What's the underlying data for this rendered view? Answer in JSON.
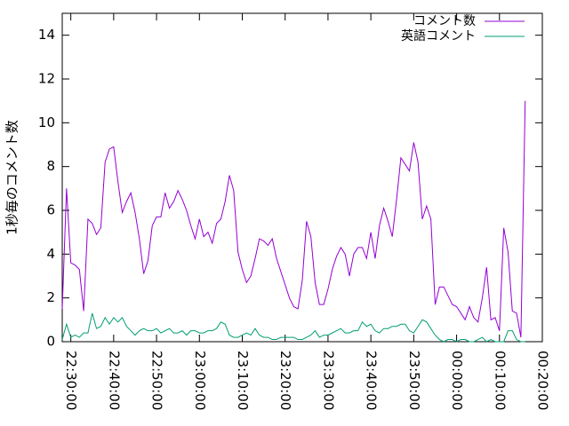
{
  "chart_data": {
    "type": "line",
    "y_label": "1秒毎のコメント数",
    "x": [
      "22:28:00",
      "22:29:00",
      "22:30:00",
      "22:31:00",
      "22:32:00",
      "22:33:00",
      "22:34:00",
      "22:35:00",
      "22:36:00",
      "22:37:00",
      "22:38:00",
      "22:39:00",
      "22:40:00",
      "22:41:00",
      "22:42:00",
      "22:43:00",
      "22:44:00",
      "22:45:00",
      "22:46:00",
      "22:47:00",
      "22:48:00",
      "22:49:00",
      "22:50:00",
      "22:51:00",
      "22:52:00",
      "22:53:00",
      "22:54:00",
      "22:55:00",
      "22:56:00",
      "22:57:00",
      "22:58:00",
      "22:59:00",
      "23:00:00",
      "23:01:00",
      "23:02:00",
      "23:03:00",
      "23:04:00",
      "23:05:00",
      "23:06:00",
      "23:07:00",
      "23:08:00",
      "23:09:00",
      "23:10:00",
      "23:11:00",
      "23:12:00",
      "23:13:00",
      "23:14:00",
      "23:15:00",
      "23:16:00",
      "23:17:00",
      "23:18:00",
      "23:19:00",
      "23:20:00",
      "23:21:00",
      "23:22:00",
      "23:23:00",
      "23:24:00",
      "23:25:00",
      "23:26:00",
      "23:27:00",
      "23:28:00",
      "23:29:00",
      "23:30:00",
      "23:31:00",
      "23:32:00",
      "23:33:00",
      "23:34:00",
      "23:35:00",
      "23:36:00",
      "23:37:00",
      "23:38:00",
      "23:39:00",
      "23:40:00",
      "23:41:00",
      "23:42:00",
      "23:43:00",
      "23:44:00",
      "23:45:00",
      "23:46:00",
      "23:47:00",
      "23:48:00",
      "23:49:00",
      "23:50:00",
      "23:51:00",
      "23:52:00",
      "23:53:00",
      "23:54:00",
      "23:55:00",
      "23:56:00",
      "23:57:00",
      "23:58:00",
      "23:59:00",
      "00:00:00",
      "00:01:00",
      "00:02:00",
      "00:03:00",
      "00:04:00",
      "00:05:00",
      "00:06:00",
      "00:07:00",
      "00:08:00",
      "00:09:00",
      "00:10:00",
      "00:11:00",
      "00:12:00",
      "00:13:00",
      "00:14:00",
      "00:15:00",
      "00:16:00"
    ],
    "series": [
      {
        "name": "コメント数",
        "color": "#9400d3",
        "values": [
          1.5,
          7.0,
          3.6,
          3.5,
          3.3,
          1.4,
          5.6,
          5.4,
          4.9,
          5.2,
          8.2,
          8.8,
          8.9,
          7.3,
          5.9,
          6.4,
          6.8,
          5.9,
          4.7,
          3.1,
          3.7,
          5.3,
          5.7,
          5.7,
          6.8,
          6.1,
          6.4,
          6.9,
          6.5,
          6.0,
          5.3,
          4.7,
          5.6,
          4.8,
          5.0,
          4.5,
          5.4,
          5.6,
          6.4,
          7.6,
          6.9,
          4.1,
          3.3,
          2.7,
          3.0,
          3.8,
          4.7,
          4.6,
          4.4,
          4.7,
          3.8,
          3.2,
          2.6,
          2.0,
          1.6,
          1.5,
          2.8,
          5.5,
          4.8,
          2.7,
          1.7,
          1.7,
          2.4,
          3.3,
          3.9,
          4.3,
          4.0,
          3.0,
          4.0,
          4.3,
          4.3,
          3.8,
          5.0,
          3.8,
          5.3,
          6.1,
          5.5,
          4.8,
          6.5,
          8.4,
          8.1,
          7.8,
          9.1,
          8.2,
          5.6,
          6.2,
          5.6,
          1.7,
          2.5,
          2.5,
          2.1,
          1.7,
          1.6,
          1.3,
          1.0,
          1.6,
          1.1,
          0.9,
          2.0,
          3.4,
          1.0,
          1.1,
          0.5,
          5.2,
          4.1,
          1.4,
          1.3,
          0.2,
          11.0
        ]
      },
      {
        "name": "英語コメント",
        "color": "#009e73",
        "values": [
          0.1,
          0.8,
          0.2,
          0.3,
          0.2,
          0.4,
          0.4,
          1.3,
          0.6,
          0.7,
          1.1,
          0.8,
          1.1,
          0.9,
          1.1,
          0.7,
          0.5,
          0.3,
          0.5,
          0.6,
          0.5,
          0.5,
          0.6,
          0.4,
          0.5,
          0.6,
          0.4,
          0.4,
          0.5,
          0.3,
          0.5,
          0.5,
          0.4,
          0.4,
          0.5,
          0.5,
          0.6,
          0.9,
          0.8,
          0.3,
          0.2,
          0.2,
          0.3,
          0.4,
          0.3,
          0.6,
          0.3,
          0.2,
          0.2,
          0.1,
          0.1,
          0.2,
          0.2,
          0.2,
          0.2,
          0.1,
          0.1,
          0.2,
          0.3,
          0.5,
          0.2,
          0.3,
          0.3,
          0.4,
          0.5,
          0.6,
          0.4,
          0.4,
          0.5,
          0.5,
          0.9,
          0.7,
          0.8,
          0.5,
          0.4,
          0.6,
          0.6,
          0.7,
          0.7,
          0.8,
          0.8,
          0.5,
          0.4,
          0.7,
          1.0,
          0.9,
          0.6,
          0.3,
          0.1,
          0.0,
          0.1,
          0.1,
          0.0,
          0.1,
          0.1,
          0.0,
          0.0,
          0.1,
          0.2,
          0.0,
          0.1,
          0.0,
          0.0,
          0.0,
          0.5,
          0.5,
          0.1,
          0.0,
          0.0
        ]
      }
    ],
    "xlim": [
      "22:28:00",
      "00:20:00"
    ],
    "xticks": [
      "22:30:00",
      "22:40:00",
      "22:50:00",
      "23:00:00",
      "23:10:00",
      "23:20:00",
      "23:30:00",
      "23:40:00",
      "23:50:00",
      "00:00:00",
      "00:10:00",
      "00:20:00"
    ],
    "ylim": [
      0,
      15
    ],
    "yticks": [
      0,
      2,
      4,
      6,
      8,
      10,
      12,
      14
    ],
    "legend": "top-right"
  }
}
